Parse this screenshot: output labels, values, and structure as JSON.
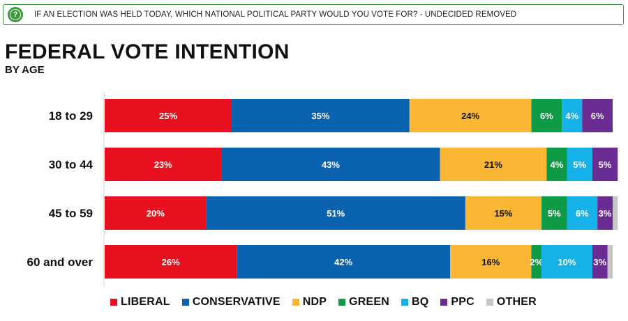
{
  "header": {
    "icon": "question-circle-icon",
    "question": "IF AN ELECTION WAS HELD TODAY, WHICH NATIONAL POLITICAL PARTY WOULD YOU VOTE FOR? - UNDECIDED REMOVED"
  },
  "chart_data": {
    "type": "bar",
    "orientation": "horizontal",
    "stacked": true,
    "title": "FEDERAL VOTE INTENTION",
    "subtitle": "BY AGE",
    "xlabel": "",
    "ylabel": "",
    "xlim": [
      0,
      100
    ],
    "categories": [
      "18 to 29",
      "30 to 44",
      "45 to 59",
      "60 and over"
    ],
    "series": [
      {
        "name": "LIBERAL",
        "color": "#e8101f",
        "values": [
          25,
          23,
          20,
          26
        ],
        "labels": [
          "25%",
          "23%",
          "20%",
          "26%"
        ]
      },
      {
        "name": "CONSERVATIVE",
        "color": "#0a62b0",
        "values": [
          35,
          43,
          51,
          42
        ],
        "labels": [
          "35%",
          "43%",
          "51%",
          "42%"
        ]
      },
      {
        "name": "NDP",
        "color": "#fbb633",
        "values": [
          24,
          21,
          15,
          16
        ],
        "labels": [
          "24%",
          "21%",
          "15%",
          "16%"
        ]
      },
      {
        "name": "GREEN",
        "color": "#0f9a45",
        "values": [
          6,
          4,
          5,
          2
        ],
        "labels": [
          "6%",
          "4%",
          "5%",
          "2%"
        ]
      },
      {
        "name": "BQ",
        "color": "#14b2e8",
        "values": [
          4,
          5,
          6,
          10
        ],
        "labels": [
          "4%",
          "5%",
          "6%",
          "10%"
        ]
      },
      {
        "name": "PPC",
        "color": "#6a2c93",
        "values": [
          6,
          5,
          3,
          3
        ],
        "labels": [
          "6%",
          "5%",
          "3%",
          "3%"
        ]
      },
      {
        "name": "OTHER",
        "color": "#c6c6c6",
        "values": [
          0,
          0,
          1,
          1
        ],
        "labels": [
          "",
          "",
          "",
          ""
        ]
      }
    ],
    "label_colors": {
      "NDP": "#111111"
    },
    "legend": {
      "position": "bottom"
    }
  }
}
